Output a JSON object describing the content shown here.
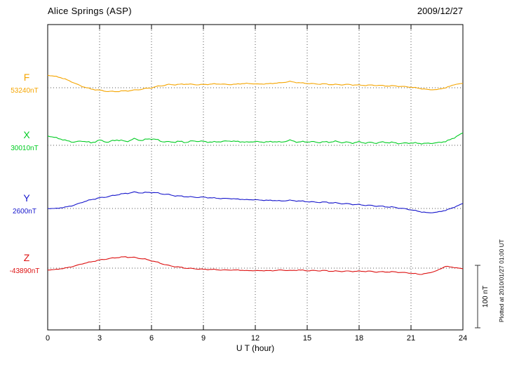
{
  "header": {
    "title": "Alice Springs (ASP)",
    "date": "2009/12/27"
  },
  "axis": {
    "xlabel": "U T (hour)",
    "ticks": [
      0,
      3,
      6,
      9,
      12,
      15,
      18,
      21,
      24
    ],
    "x_range": [
      0,
      24
    ]
  },
  "scale_bar": {
    "label": "100 nT",
    "value_nT": 100
  },
  "footer_note": "Plotted at 2010/01/27 01:00 UT",
  "chart_data": {
    "type": "line",
    "title": "Alice Springs (ASP) magnetogram",
    "date": "2009/12/27",
    "xlabel": "U T (hour)",
    "ylabel": "nT",
    "x_range": [
      0,
      24
    ],
    "x_step": 0.5,
    "grid": "dotted vertical every 3 h, dotted baseline per component",
    "legend_position": "left margin, colored component labels",
    "series": [
      {
        "name": "F",
        "baseline_label": "53240nT",
        "baseline_nT": 53240,
        "color": "#f5a500",
        "values": [
          53260,
          53258,
          53254,
          53248,
          53242,
          53238,
          53236,
          53234,
          53234,
          53235,
          53236,
          53238,
          53240,
          53243,
          53245,
          53245,
          53246,
          53245,
          53245,
          53246,
          53246,
          53245,
          53246,
          53247,
          53246,
          53246,
          53247,
          53248,
          53250,
          53248,
          53247,
          53246,
          53246,
          53245,
          53245,
          53245,
          53244,
          53244,
          53244,
          53243,
          53243,
          53242,
          53241,
          53239,
          53237,
          53237,
          53240,
          53245,
          53247
        ]
      },
      {
        "name": "X",
        "baseline_label": "30010nT",
        "baseline_nT": 30010,
        "color": "#00cc22",
        "values": [
          30025,
          30022,
          30018,
          30015,
          30017,
          30014,
          30018,
          30015,
          30019,
          30016,
          30020,
          30018,
          30021,
          30017,
          30015,
          30016,
          30015,
          30017,
          30016,
          30015,
          30016,
          30017,
          30016,
          30015,
          30016,
          30015,
          30016,
          30015,
          30018,
          30015,
          30016,
          30015,
          30015,
          30016,
          30015,
          30014,
          30015,
          30014,
          30014,
          30015,
          30014,
          30013,
          30014,
          30013,
          30013,
          30014,
          30016,
          30022,
          30030
        ]
      },
      {
        "name": "Y",
        "baseline_label": "2600nT",
        "baseline_nT": 2600,
        "color": "#1515cc",
        "values": [
          2600,
          2600,
          2602,
          2605,
          2610,
          2614,
          2617,
          2619,
          2622,
          2624,
          2626,
          2625,
          2626,
          2624,
          2622,
          2620,
          2619,
          2618,
          2618,
          2617,
          2616,
          2616,
          2615,
          2614,
          2614,
          2613,
          2613,
          2612,
          2613,
          2612,
          2611,
          2610,
          2610,
          2609,
          2608,
          2607,
          2606,
          2605,
          2604,
          2603,
          2602,
          2600,
          2598,
          2595,
          2593,
          2594,
          2597,
          2602,
          2608
        ]
      },
      {
        "name": "Z",
        "baseline_label": "-43890nT",
        "baseline_nT": -43890,
        "color": "#dd1111",
        "values": [
          -43893,
          -43892,
          -43890,
          -43887,
          -43883,
          -43880,
          -43877,
          -43875,
          -43873,
          -43872,
          -43873,
          -43875,
          -43878,
          -43882,
          -43886,
          -43888,
          -43890,
          -43891,
          -43892,
          -43892,
          -43893,
          -43893,
          -43893,
          -43894,
          -43894,
          -43894,
          -43894,
          -43893,
          -43894,
          -43893,
          -43894,
          -43894,
          -43894,
          -43895,
          -43895,
          -43895,
          -43895,
          -43895,
          -43896,
          -43896,
          -43896,
          -43897,
          -43898,
          -43900,
          -43898,
          -43894,
          -43887,
          -43889,
          -43891
        ]
      }
    ]
  }
}
